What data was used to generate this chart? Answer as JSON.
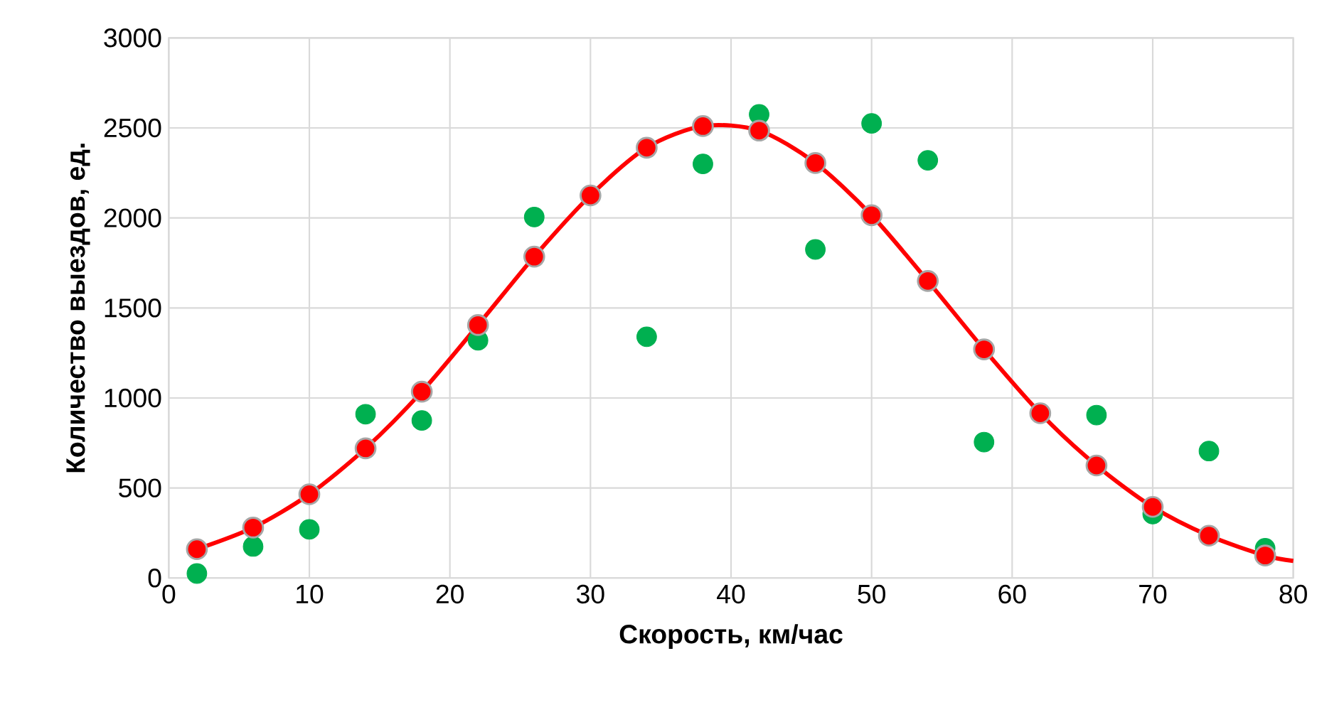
{
  "chart_data": {
    "type": "scatter",
    "xlabel": "Скорость, км/час",
    "ylabel": "Количество выездов, ед.",
    "xlim": [
      0,
      80
    ],
    "ylim": [
      0,
      3000
    ],
    "xticks": [
      0,
      10,
      20,
      30,
      40,
      50,
      60,
      70,
      80
    ],
    "yticks": [
      0,
      500,
      1000,
      1500,
      2000,
      2500,
      3000
    ],
    "grid": true,
    "series": [
      {
        "marker": "circle",
        "color": "#00b050",
        "x": [
          2,
          6,
          10,
          14,
          18,
          22,
          26,
          30,
          34,
          38,
          42,
          46,
          50,
          54,
          58,
          62,
          66,
          70,
          74,
          78
        ],
        "values": [
          25,
          175,
          270,
          910,
          875,
          1320,
          2005,
          null,
          1340,
          2300,
          2575,
          1825,
          2525,
          2320,
          755,
          null,
          905,
          355,
          705,
          165
        ]
      },
      {
        "type": "line",
        "color": "#ff0000",
        "marker": "none",
        "x": [
          2,
          6,
          10,
          14,
          18,
          22,
          26,
          30,
          34,
          38,
          42,
          46,
          50,
          54,
          58,
          62,
          66,
          70,
          74,
          78,
          80
        ],
        "values": [
          160,
          280,
          465,
          720,
          1035,
          1405,
          1785,
          2125,
          2390,
          2510,
          2485,
          2305,
          2015,
          1650,
          1270,
          915,
          625,
          395,
          235,
          125,
          95
        ]
      },
      {
        "marker": "circle",
        "color": "#ff0000",
        "x": [
          2,
          6,
          10,
          14,
          18,
          22,
          26,
          30,
          34,
          38,
          42,
          46,
          50,
          54,
          58,
          62,
          66,
          70,
          74,
          78
        ],
        "values": [
          160,
          280,
          465,
          720,
          1035,
          1405,
          1785,
          2125,
          2390,
          2510,
          2485,
          2305,
          2015,
          1650,
          1270,
          915,
          625,
          395,
          235,
          125
        ]
      }
    ]
  }
}
